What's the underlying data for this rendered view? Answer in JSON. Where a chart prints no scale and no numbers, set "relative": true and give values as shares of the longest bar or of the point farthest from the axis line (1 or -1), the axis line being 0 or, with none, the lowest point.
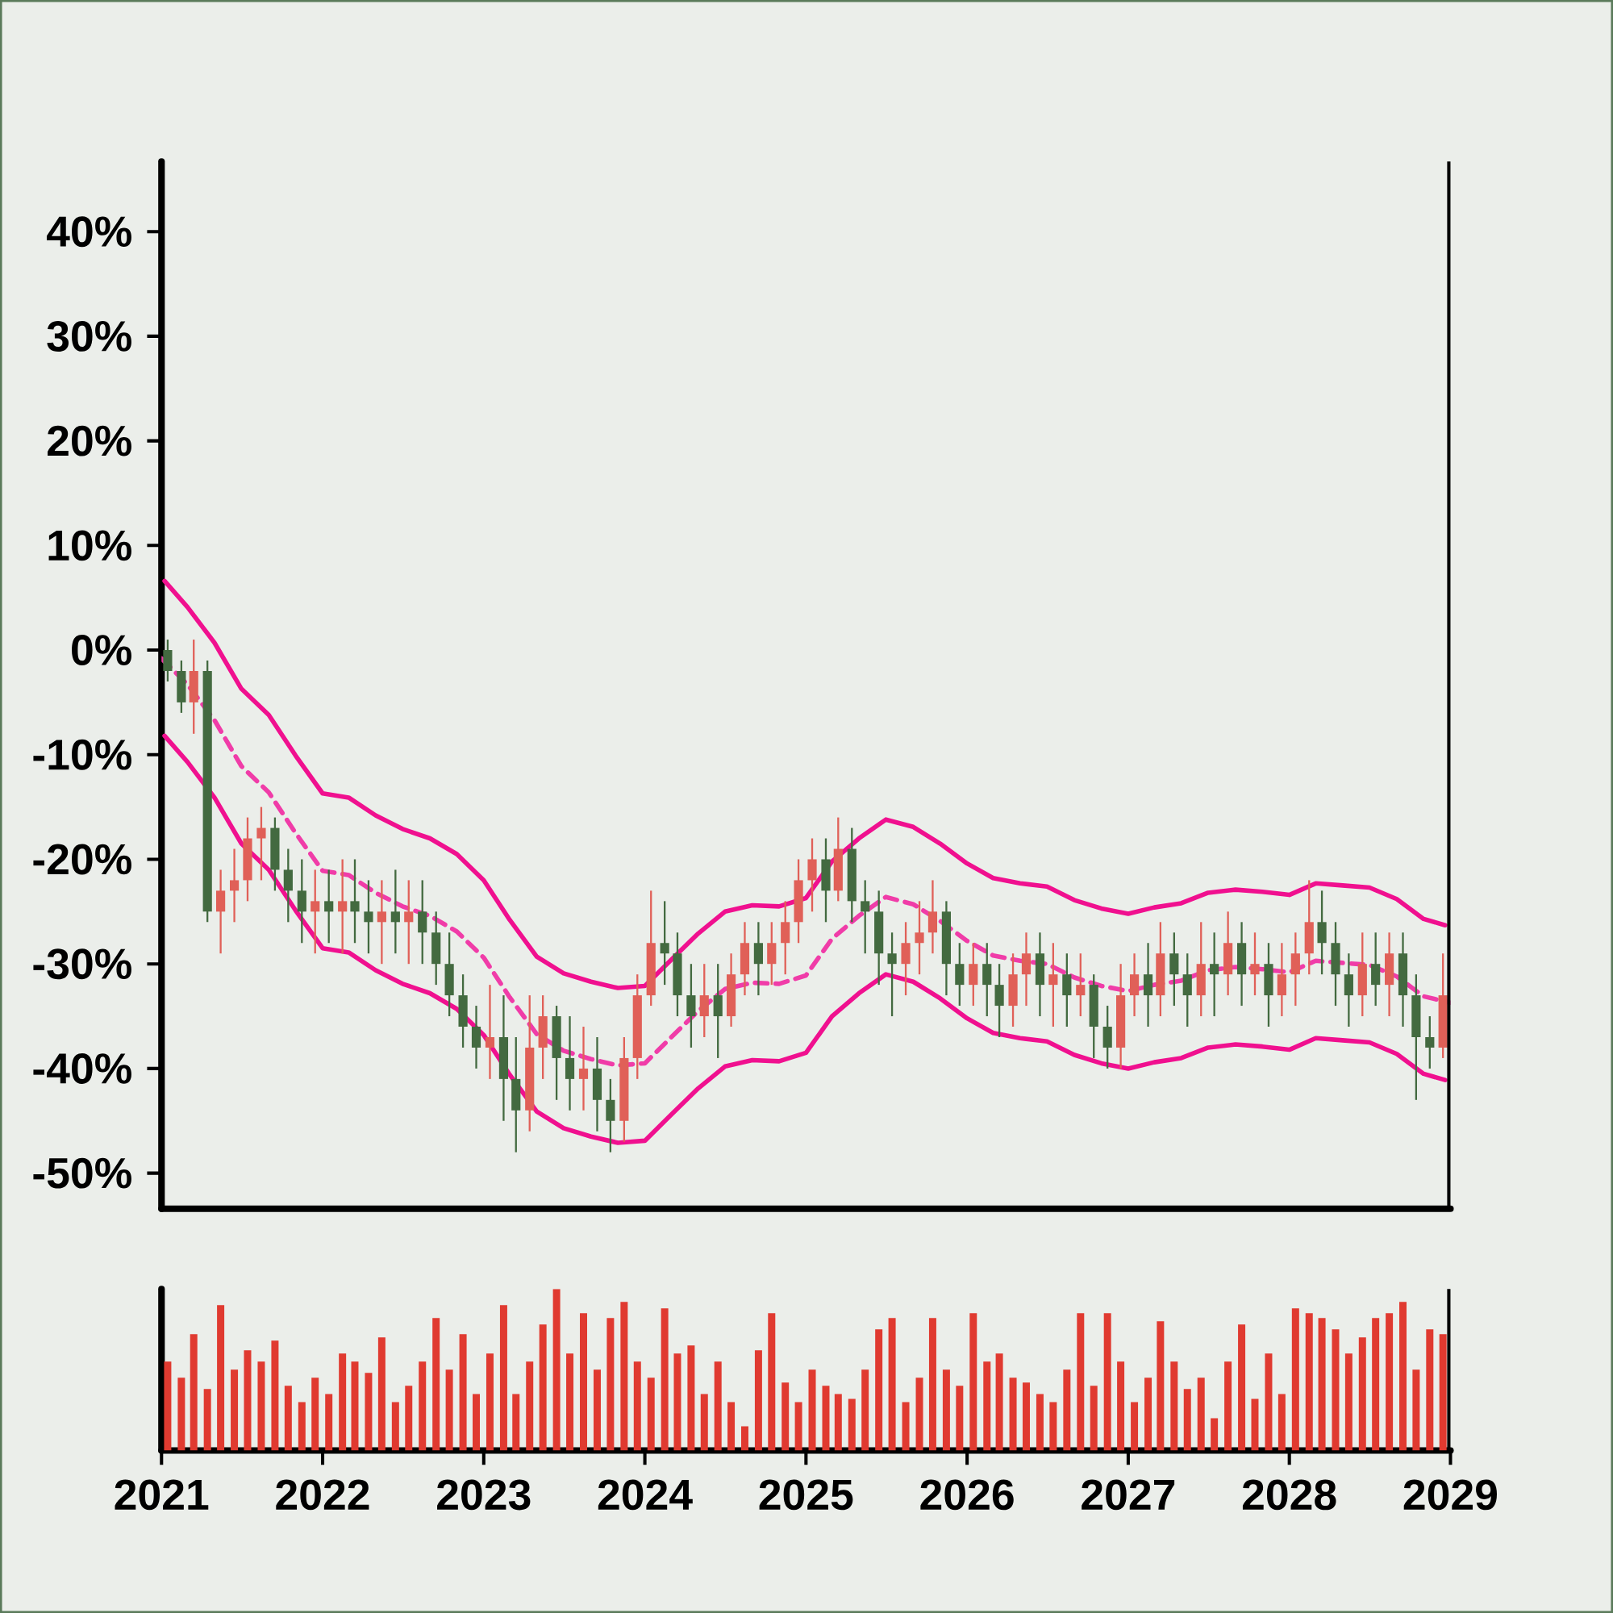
{
  "chart_data": [
    {
      "type": "candlestick",
      "x": [
        "2021-01-15",
        "2021-02-15",
        "2021-03-15",
        "2021-04-15",
        "2021-05-15",
        "2021-06-15",
        "2021-07-15",
        "2021-08-15",
        "2021-09-15",
        "2021-10-15",
        "2021-11-15",
        "2021-12-15",
        "2022-01-15",
        "2022-02-15",
        "2022-03-15",
        "2022-04-15",
        "2022-05-15",
        "2022-06-15",
        "2022-07-15",
        "2022-08-15",
        "2022-09-15",
        "2022-10-15",
        "2022-11-15",
        "2022-12-15",
        "2023-01-15",
        "2023-02-15",
        "2023-03-15",
        "2023-04-15",
        "2023-05-15",
        "2023-06-15",
        "2023-07-15",
        "2023-08-15",
        "2023-09-15",
        "2023-10-15",
        "2023-11-15",
        "2023-12-15",
        "2024-01-15",
        "2024-02-15",
        "2024-03-15",
        "2024-04-15",
        "2024-05-15",
        "2024-06-15",
        "2024-07-15",
        "2024-08-15",
        "2024-09-15",
        "2024-10-15",
        "2024-11-15",
        "2024-12-15",
        "2025-01-15",
        "2025-02-15",
        "2025-03-15",
        "2025-04-15",
        "2025-05-15",
        "2025-06-15",
        "2025-07-15",
        "2025-08-15",
        "2025-09-15",
        "2025-10-15",
        "2025-11-15",
        "2025-12-15",
        "2026-01-15",
        "2026-02-15",
        "2026-03-15",
        "2026-04-15",
        "2026-05-15",
        "2026-06-15",
        "2026-07-15",
        "2026-08-15",
        "2026-09-15",
        "2026-10-15",
        "2026-11-15",
        "2026-12-15",
        "2027-01-15",
        "2027-02-15",
        "2027-03-15",
        "2027-04-15",
        "2027-05-15",
        "2027-06-15",
        "2027-07-15",
        "2027-08-15",
        "2027-09-15",
        "2027-10-15",
        "2027-11-15",
        "2027-12-15",
        "2028-01-15",
        "2028-02-15",
        "2028-03-15",
        "2028-04-15",
        "2028-05-15",
        "2028-06-15",
        "2028-07-15",
        "2028-08-15",
        "2028-09-15",
        "2028-10-15",
        "2028-11-15",
        "2028-12-15"
      ],
      "ohlc": [
        [
          0,
          1,
          -3,
          -2
        ],
        [
          -2,
          -1,
          -6,
          -5
        ],
        [
          -5,
          1,
          -8,
          -2
        ],
        [
          -2,
          -1,
          -26,
          -25
        ],
        [
          -25,
          -21,
          -29,
          -23
        ],
        [
          -23,
          -19,
          -26,
          -22
        ],
        [
          -22,
          -16,
          -24,
          -18
        ],
        [
          -18,
          -15,
          -22,
          -17
        ],
        [
          -17,
          -16,
          -23,
          -21
        ],
        [
          -21,
          -19,
          -26,
          -23
        ],
        [
          -23,
          -20,
          -28,
          -25
        ],
        [
          -25,
          -21,
          -29,
          -24
        ],
        [
          -24,
          -21,
          -28,
          -25
        ],
        [
          -25,
          -20,
          -29,
          -24
        ],
        [
          -24,
          -20,
          -28,
          -25
        ],
        [
          -25,
          -22,
          -29,
          -26
        ],
        [
          -26,
          -22,
          -30,
          -25
        ],
        [
          -25,
          -21,
          -29,
          -26
        ],
        [
          -26,
          -22,
          -30,
          -25
        ],
        [
          -25,
          -22,
          -30,
          -27
        ],
        [
          -27,
          -25,
          -32,
          -30
        ],
        [
          -30,
          -27,
          -35,
          -33
        ],
        [
          -33,
          -31,
          -38,
          -36
        ],
        [
          -36,
          -34,
          -40,
          -38
        ],
        [
          -38,
          -32,
          -41,
          -37
        ],
        [
          -37,
          -33,
          -45,
          -41
        ],
        [
          -41,
          -37,
          -48,
          -44
        ],
        [
          -44,
          -33,
          -46,
          -38
        ],
        [
          -38,
          -33,
          -41,
          -35
        ],
        [
          -35,
          -34,
          -43,
          -39
        ],
        [
          -39,
          -35,
          -44,
          -41
        ],
        [
          -41,
          -36,
          -44,
          -40
        ],
        [
          -40,
          -37,
          -46,
          -43
        ],
        [
          -43,
          -41,
          -48,
          -45
        ],
        [
          -45,
          -37,
          -47,
          -39
        ],
        [
          -39,
          -31,
          -41,
          -33
        ],
        [
          -33,
          -23,
          -34,
          -28
        ],
        [
          -28,
          -24,
          -32,
          -29
        ],
        [
          -29,
          -27,
          -35,
          -33
        ],
        [
          -33,
          -30,
          -38,
          -35
        ],
        [
          -35,
          -30,
          -37,
          -33
        ],
        [
          -33,
          -30,
          -39,
          -35
        ],
        [
          -35,
          -29,
          -36,
          -31
        ],
        [
          -31,
          -26,
          -33,
          -28
        ],
        [
          -28,
          -26,
          -33,
          -30
        ],
        [
          -30,
          -26,
          -32,
          -28
        ],
        [
          -28,
          -24,
          -31,
          -26
        ],
        [
          -26,
          -20,
          -28,
          -22
        ],
        [
          -22,
          -18,
          -25,
          -20
        ],
        [
          -20,
          -18,
          -26,
          -23
        ],
        [
          -23,
          -16,
          -24,
          -19
        ],
        [
          -19,
          -17,
          -26,
          -24
        ],
        [
          -24,
          -22,
          -29,
          -25
        ],
        [
          -25,
          -23,
          -32,
          -29
        ],
        [
          -29,
          -27,
          -35,
          -30
        ],
        [
          -30,
          -26,
          -33,
          -28
        ],
        [
          -28,
          -24,
          -31,
          -27
        ],
        [
          -27,
          -22,
          -29,
          -25
        ],
        [
          -25,
          -24,
          -33,
          -30
        ],
        [
          -30,
          -28,
          -34,
          -32
        ],
        [
          -32,
          -28,
          -34,
          -30
        ],
        [
          -30,
          -28,
          -35,
          -32
        ],
        [
          -32,
          -30,
          -37,
          -34
        ],
        [
          -34,
          -29,
          -36,
          -31
        ],
        [
          -31,
          -27,
          -34,
          -29
        ],
        [
          -29,
          -27,
          -35,
          -32
        ],
        [
          -32,
          -28,
          -36,
          -31
        ],
        [
          -31,
          -29,
          -36,
          -33
        ],
        [
          -33,
          -29,
          -35,
          -32
        ],
        [
          -32,
          -31,
          -39,
          -36
        ],
        [
          -36,
          -34,
          -40,
          -38
        ],
        [
          -38,
          -30,
          -40,
          -33
        ],
        [
          -33,
          -29,
          -35,
          -31
        ],
        [
          -31,
          -28,
          -36,
          -33
        ],
        [
          -33,
          -26,
          -35,
          -29
        ],
        [
          -29,
          -27,
          -34,
          -31
        ],
        [
          -31,
          -29,
          -36,
          -33
        ],
        [
          -33,
          -26,
          -35,
          -30
        ],
        [
          -30,
          -27,
          -35,
          -31
        ],
        [
          -31,
          -25,
          -33,
          -28
        ],
        [
          -28,
          -26,
          -34,
          -31
        ],
        [
          -31,
          -27,
          -33,
          -30
        ],
        [
          -30,
          -28,
          -36,
          -33
        ],
        [
          -33,
          -28,
          -35,
          -31
        ],
        [
          -31,
          -27,
          -34,
          -29
        ],
        [
          -29,
          -22,
          -31,
          -26
        ],
        [
          -26,
          -23,
          -31,
          -28
        ],
        [
          -28,
          -26,
          -34,
          -31
        ],
        [
          -31,
          -29,
          -36,
          -33
        ],
        [
          -33,
          -27,
          -35,
          -30
        ],
        [
          -30,
          -27,
          -34,
          -32
        ],
        [
          -32,
          -27,
          -35,
          -29
        ],
        [
          -29,
          -27,
          -36,
          -33
        ],
        [
          -33,
          -31,
          -43,
          -37
        ],
        [
          -37,
          -35,
          -40,
          -38
        ],
        [
          -38,
          -29,
          -39,
          -33
        ]
      ],
      "colors": [
        "#436a40",
        "#436a40",
        "#e06058",
        "#436a40",
        "#e06058",
        "#e06058",
        "#e06058",
        "#e06058",
        "#436a40",
        "#436a40",
        "#436a40",
        "#e06058",
        "#436a40",
        "#e06058",
        "#436a40",
        "#436a40",
        "#e06058",
        "#436a40",
        "#e06058",
        "#436a40",
        "#436a40",
        "#436a40",
        "#436a40",
        "#436a40",
        "#e06058",
        "#436a40",
        "#436a40",
        "#e06058",
        "#e06058",
        "#436a40",
        "#436a40",
        "#e06058",
        "#436a40",
        "#436a40",
        "#e06058",
        "#e06058",
        "#e06058",
        "#436a40",
        "#436a40",
        "#436a40",
        "#e06058",
        "#436a40",
        "#e06058",
        "#e06058",
        "#436a40",
        "#e06058",
        "#e06058",
        "#e06058",
        "#e06058",
        "#436a40",
        "#e06058",
        "#436a40",
        "#436a40",
        "#436a40",
        "#436a40",
        "#e06058",
        "#e06058",
        "#e06058",
        "#436a40",
        "#436a40",
        "#e06058",
        "#436a40",
        "#436a40",
        "#e06058",
        "#e06058",
        "#436a40",
        "#e06058",
        "#436a40",
        "#e06058",
        "#436a40",
        "#436a40",
        "#e06058",
        "#e06058",
        "#436a40",
        "#e06058",
        "#436a40",
        "#436a40",
        "#e06058",
        "#436a40",
        "#e06058",
        "#436a40",
        "#e06058",
        "#436a40",
        "#e06058",
        "#e06058",
        "#e06058",
        "#436a40",
        "#436a40",
        "#436a40",
        "#e06058",
        "#436a40",
        "#e06058",
        "#436a40",
        "#436a40",
        "#436a40",
        "#e06058"
      ],
      "series": [
        {
          "type": "line",
          "color": "#f0108f",
          "line_style": "solid",
          "x": [
            "2021-01-08",
            "2021-03-01",
            "2021-05-01",
            "2021-07-01",
            "2021-09-01",
            "2021-11-01",
            "2022-01-01",
            "2022-03-01",
            "2022-05-01",
            "2022-07-01",
            "2022-09-01",
            "2022-11-01",
            "2023-01-01",
            "2023-03-01",
            "2023-05-01",
            "2023-07-01",
            "2023-09-01",
            "2023-11-01",
            "2024-01-01",
            "2024-03-01",
            "2024-05-01",
            "2024-07-01",
            "2024-09-01",
            "2024-11-01",
            "2025-01-01",
            "2025-03-01",
            "2025-05-01",
            "2025-07-01",
            "2025-09-01",
            "2025-11-01",
            "2026-01-01",
            "2026-03-01",
            "2026-05-01",
            "2026-07-01",
            "2026-09-01",
            "2026-11-01",
            "2027-01-01",
            "2027-03-01",
            "2027-05-01",
            "2027-07-01",
            "2027-09-01",
            "2027-11-01",
            "2028-01-01",
            "2028-03-01",
            "2028-05-01",
            "2028-07-01",
            "2028-09-01",
            "2028-11-01",
            "2028-12-20"
          ],
          "values": [
            6.6,
            4.1,
            0.7,
            -3.7,
            -6.2,
            -10.1,
            -13.7,
            -14.1,
            -15.8,
            -17.1,
            -18.0,
            -19.5,
            -22.0,
            -25.8,
            -29.3,
            -30.9,
            -31.7,
            -32.3,
            -32.1,
            -29.6,
            -27.1,
            -25.0,
            -24.4,
            -24.5,
            -23.7,
            -20.2,
            -18.0,
            -16.2,
            -16.9,
            -18.5,
            -20.4,
            -21.8,
            -22.3,
            -22.6,
            -23.9,
            -24.7,
            -25.2,
            -24.6,
            -24.2,
            -23.2,
            -22.9,
            -23.1,
            -23.4,
            -22.3,
            -22.5,
            -22.7,
            -23.8,
            -25.7,
            -26.3
          ]
        },
        {
          "type": "line",
          "color": "#f03ca8",
          "line_style": "dashed",
          "x": [
            "2021-01-01",
            "2021-03-01",
            "2021-05-01",
            "2021-07-01",
            "2021-09-01",
            "2021-11-01",
            "2022-01-01",
            "2022-03-01",
            "2022-05-01",
            "2022-07-01",
            "2022-09-01",
            "2022-11-01",
            "2023-01-01",
            "2023-03-01",
            "2023-05-01",
            "2023-07-01",
            "2023-09-01",
            "2023-11-01",
            "2024-01-01",
            "2024-03-01",
            "2024-05-01",
            "2024-07-01",
            "2024-09-01",
            "2024-11-01",
            "2025-01-01",
            "2025-03-01",
            "2025-05-01",
            "2025-07-01",
            "2025-09-01",
            "2025-11-01",
            "2026-01-01",
            "2026-03-01",
            "2026-05-01",
            "2026-07-01",
            "2026-09-01",
            "2026-11-01",
            "2027-01-01",
            "2027-03-01",
            "2027-05-01",
            "2027-07-01",
            "2027-09-01",
            "2027-11-01",
            "2028-01-01",
            "2028-03-01",
            "2028-05-01",
            "2028-07-01",
            "2028-09-01",
            "2028-11-01",
            "2028-12-31"
          ],
          "values": [
            -0.8,
            -3.3,
            -6.7,
            -11.1,
            -13.6,
            -17.5,
            -21.1,
            -21.5,
            -23.2,
            -24.5,
            -25.4,
            -26.9,
            -29.4,
            -33.2,
            -36.7,
            -38.3,
            -39.1,
            -39.7,
            -39.5,
            -37.0,
            -34.5,
            -32.4,
            -31.8,
            -31.9,
            -31.1,
            -27.6,
            -25.4,
            -23.6,
            -24.3,
            -25.9,
            -27.8,
            -29.2,
            -29.7,
            -30.0,
            -31.3,
            -32.1,
            -32.6,
            -32.0,
            -31.6,
            -30.6,
            -30.3,
            -30.5,
            -30.8,
            -29.7,
            -29.9,
            -30.1,
            -31.2,
            -33.1,
            -33.7
          ]
        },
        {
          "type": "line",
          "color": "#f0108f",
          "line_style": "solid",
          "x": [
            "2021-01-08",
            "2021-03-01",
            "2021-05-01",
            "2021-07-01",
            "2021-09-01",
            "2021-11-01",
            "2022-01-01",
            "2022-03-01",
            "2022-05-01",
            "2022-07-01",
            "2022-09-01",
            "2022-11-01",
            "2023-01-01",
            "2023-03-01",
            "2023-05-01",
            "2023-07-01",
            "2023-09-01",
            "2023-11-01",
            "2024-01-01",
            "2024-03-01",
            "2024-05-01",
            "2024-07-01",
            "2024-09-01",
            "2024-11-01",
            "2025-01-01",
            "2025-03-01",
            "2025-05-01",
            "2025-07-01",
            "2025-09-01",
            "2025-11-01",
            "2026-01-01",
            "2026-03-01",
            "2026-05-01",
            "2026-07-01",
            "2026-09-01",
            "2026-11-01",
            "2027-01-01",
            "2027-03-01",
            "2027-05-01",
            "2027-07-01",
            "2027-09-01",
            "2027-11-01",
            "2028-01-01",
            "2028-03-01",
            "2028-05-01",
            "2028-07-01",
            "2028-09-01",
            "2028-11-01",
            "2028-12-20"
          ],
          "values": [
            -8.2,
            -10.7,
            -14.1,
            -18.5,
            -21.0,
            -24.9,
            -28.5,
            -28.9,
            -30.6,
            -31.9,
            -32.8,
            -34.3,
            -36.8,
            -40.6,
            -44.1,
            -45.7,
            -46.5,
            -47.1,
            -46.9,
            -44.4,
            -41.9,
            -39.8,
            -39.2,
            -39.3,
            -38.5,
            -35.0,
            -32.8,
            -31.0,
            -31.7,
            -33.3,
            -35.2,
            -36.6,
            -37.1,
            -37.4,
            -38.7,
            -39.5,
            -40.0,
            -39.4,
            -39.0,
            -38.0,
            -37.7,
            -37.9,
            -38.2,
            -37.1,
            -37.3,
            -37.5,
            -38.6,
            -40.5,
            -41.1
          ]
        }
      ],
      "xlim": [
        "2021-01-01",
        "2029-01-01"
      ],
      "ylim": [
        -53.4,
        46.7
      ],
      "yticks": [
        {
          "value": -50,
          "label": "-50%"
        },
        {
          "value": -40,
          "label": "-40%"
        },
        {
          "value": -30,
          "label": "-30%"
        },
        {
          "value": -20,
          "label": "-20%"
        },
        {
          "value": -10,
          "label": "-10%"
        },
        {
          "value": 0,
          "label": "0%"
        },
        {
          "value": 10,
          "label": "10%"
        },
        {
          "value": 20,
          "label": "20%"
        },
        {
          "value": 30,
          "label": "30%"
        },
        {
          "value": 40,
          "label": "40%"
        }
      ],
      "tick_labels": "y"
    },
    {
      "type": "bar",
      "x": [
        "2021-01-15",
        "2021-02-15",
        "2021-03-15",
        "2021-04-15",
        "2021-05-15",
        "2021-06-15",
        "2021-07-15",
        "2021-08-15",
        "2021-09-15",
        "2021-10-15",
        "2021-11-15",
        "2021-12-15",
        "2022-01-15",
        "2022-02-15",
        "2022-03-15",
        "2022-04-15",
        "2022-05-15",
        "2022-06-15",
        "2022-07-15",
        "2022-08-15",
        "2022-09-15",
        "2022-10-15",
        "2022-11-15",
        "2022-12-15",
        "2023-01-15",
        "2023-02-15",
        "2023-03-15",
        "2023-04-15",
        "2023-05-15",
        "2023-06-15",
        "2023-07-15",
        "2023-08-15",
        "2023-09-15",
        "2023-10-15",
        "2023-11-15",
        "2023-12-15",
        "2024-01-15",
        "2024-02-15",
        "2024-03-15",
        "2024-04-15",
        "2024-05-15",
        "2024-06-15",
        "2024-07-15",
        "2024-08-15",
        "2024-09-15",
        "2024-10-15",
        "2024-11-15",
        "2024-12-15",
        "2025-01-15",
        "2025-02-15",
        "2025-03-15",
        "2025-04-15",
        "2025-05-15",
        "2025-06-15",
        "2025-07-15",
        "2025-08-15",
        "2025-09-15",
        "2025-10-15",
        "2025-11-15",
        "2025-12-15",
        "2026-01-15",
        "2026-02-15",
        "2026-03-15",
        "2026-04-15",
        "2026-05-15",
        "2026-06-15",
        "2026-07-15",
        "2026-08-15",
        "2026-09-15",
        "2026-10-15",
        "2026-11-15",
        "2026-12-15",
        "2027-01-15",
        "2027-02-15",
        "2027-03-15",
        "2027-04-15",
        "2027-05-15",
        "2027-06-15",
        "2027-07-15",
        "2027-08-15",
        "2027-09-15",
        "2027-10-15",
        "2027-11-15",
        "2027-12-15",
        "2028-01-15",
        "2028-02-15",
        "2028-03-15",
        "2028-04-15",
        "2028-05-15",
        "2028-06-15",
        "2028-07-15",
        "2028-08-15",
        "2028-09-15",
        "2028-10-15",
        "2028-11-15",
        "2028-12-15"
      ],
      "values": [
        0.55,
        0.45,
        0.72,
        0.38,
        0.9,
        0.5,
        0.62,
        0.55,
        0.68,
        0.4,
        0.3,
        0.45,
        0.35,
        0.6,
        0.55,
        0.48,
        0.7,
        0.3,
        0.4,
        0.55,
        0.82,
        0.5,
        0.72,
        0.35,
        0.6,
        0.9,
        0.35,
        0.55,
        0.78,
        1,
        0.6,
        0.85,
        0.5,
        0.82,
        0.92,
        0.55,
        0.45,
        0.88,
        0.6,
        0.65,
        0.35,
        0.55,
        0.3,
        0.15,
        0.62,
        0.85,
        0.42,
        0.3,
        0.5,
        0.4,
        0.35,
        0.32,
        0.5,
        0.75,
        0.82,
        0.3,
        0.45,
        0.82,
        0.5,
        0.4,
        0.85,
        0.55,
        0.6,
        0.45,
        0.42,
        0.35,
        0.3,
        0.5,
        0.85,
        0.4,
        0.85,
        0.55,
        0.3,
        0.45,
        0.8,
        0.55,
        0.38,
        0.45,
        0.2,
        0.55,
        0.78,
        0.32,
        0.6,
        0.35,
        0.88,
        0.85,
        0.82,
        0.75,
        0.6,
        0.7,
        0.82,
        0.85,
        0.92,
        0.5,
        0.75,
        0.72
      ],
      "color": "#e03a30",
      "relative": true,
      "xlim": [
        "2021-01-01",
        "2029-01-01"
      ],
      "xticks": [
        "2021",
        "2022",
        "2023",
        "2024",
        "2025",
        "2026",
        "2027",
        "2028",
        "2029"
      ],
      "tick_labels": "x"
    }
  ]
}
